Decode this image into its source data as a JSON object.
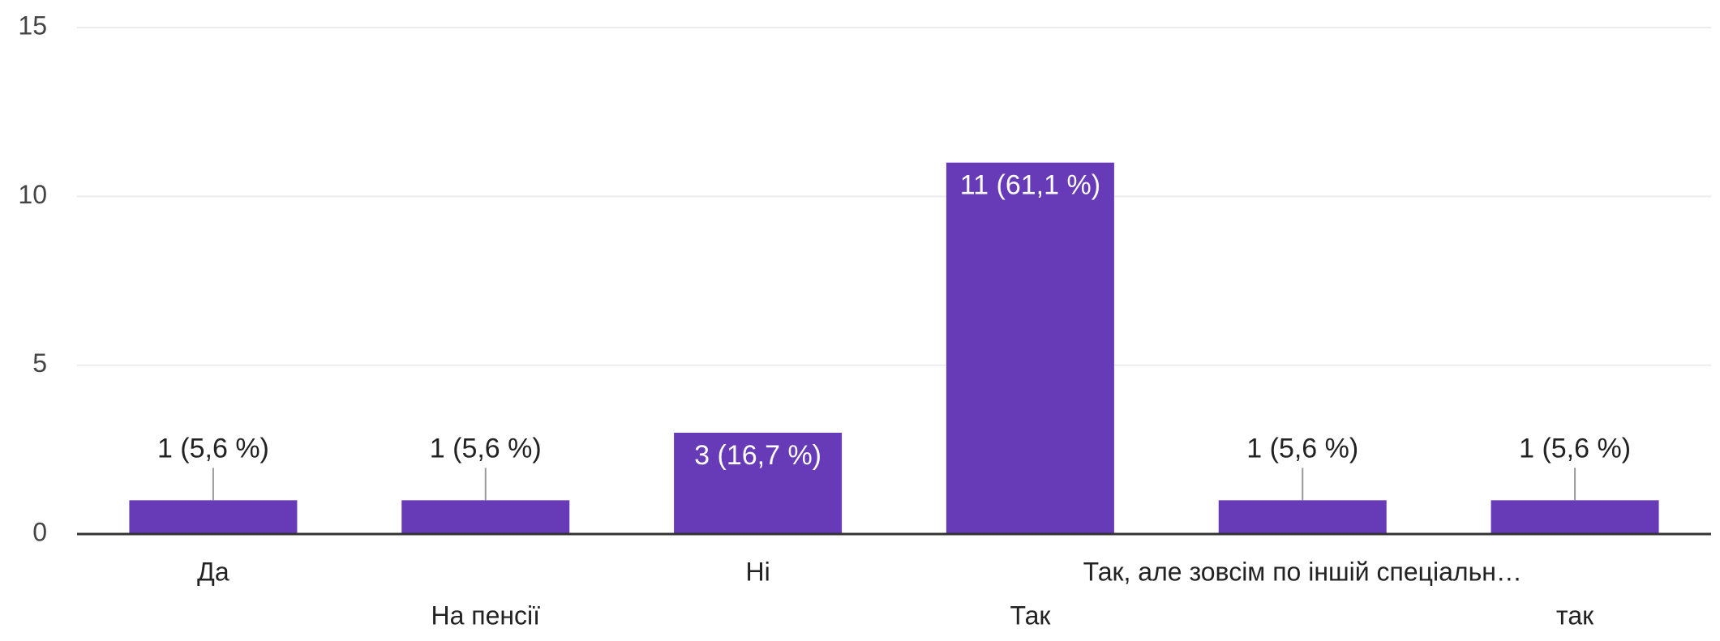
{
  "chart_data": {
    "type": "bar",
    "categories": [
      "Да",
      "На пенсії",
      "Ні",
      "Так",
      "Так, але зовсім по іншій спеціальн…",
      "так"
    ],
    "values": [
      1,
      1,
      3,
      11,
      1,
      1
    ],
    "value_labels": [
      "1 (5,6 %)",
      "1 (5,6 %)",
      "3 (16,7 %)",
      "11 (61,1 %)",
      "1 (5,6 %)",
      "1 (5,6 %)"
    ],
    "color": "#673ab7",
    "ylim": [
      0,
      15
    ],
    "yticks": [
      0,
      5,
      10,
      15
    ],
    "grid": true
  }
}
